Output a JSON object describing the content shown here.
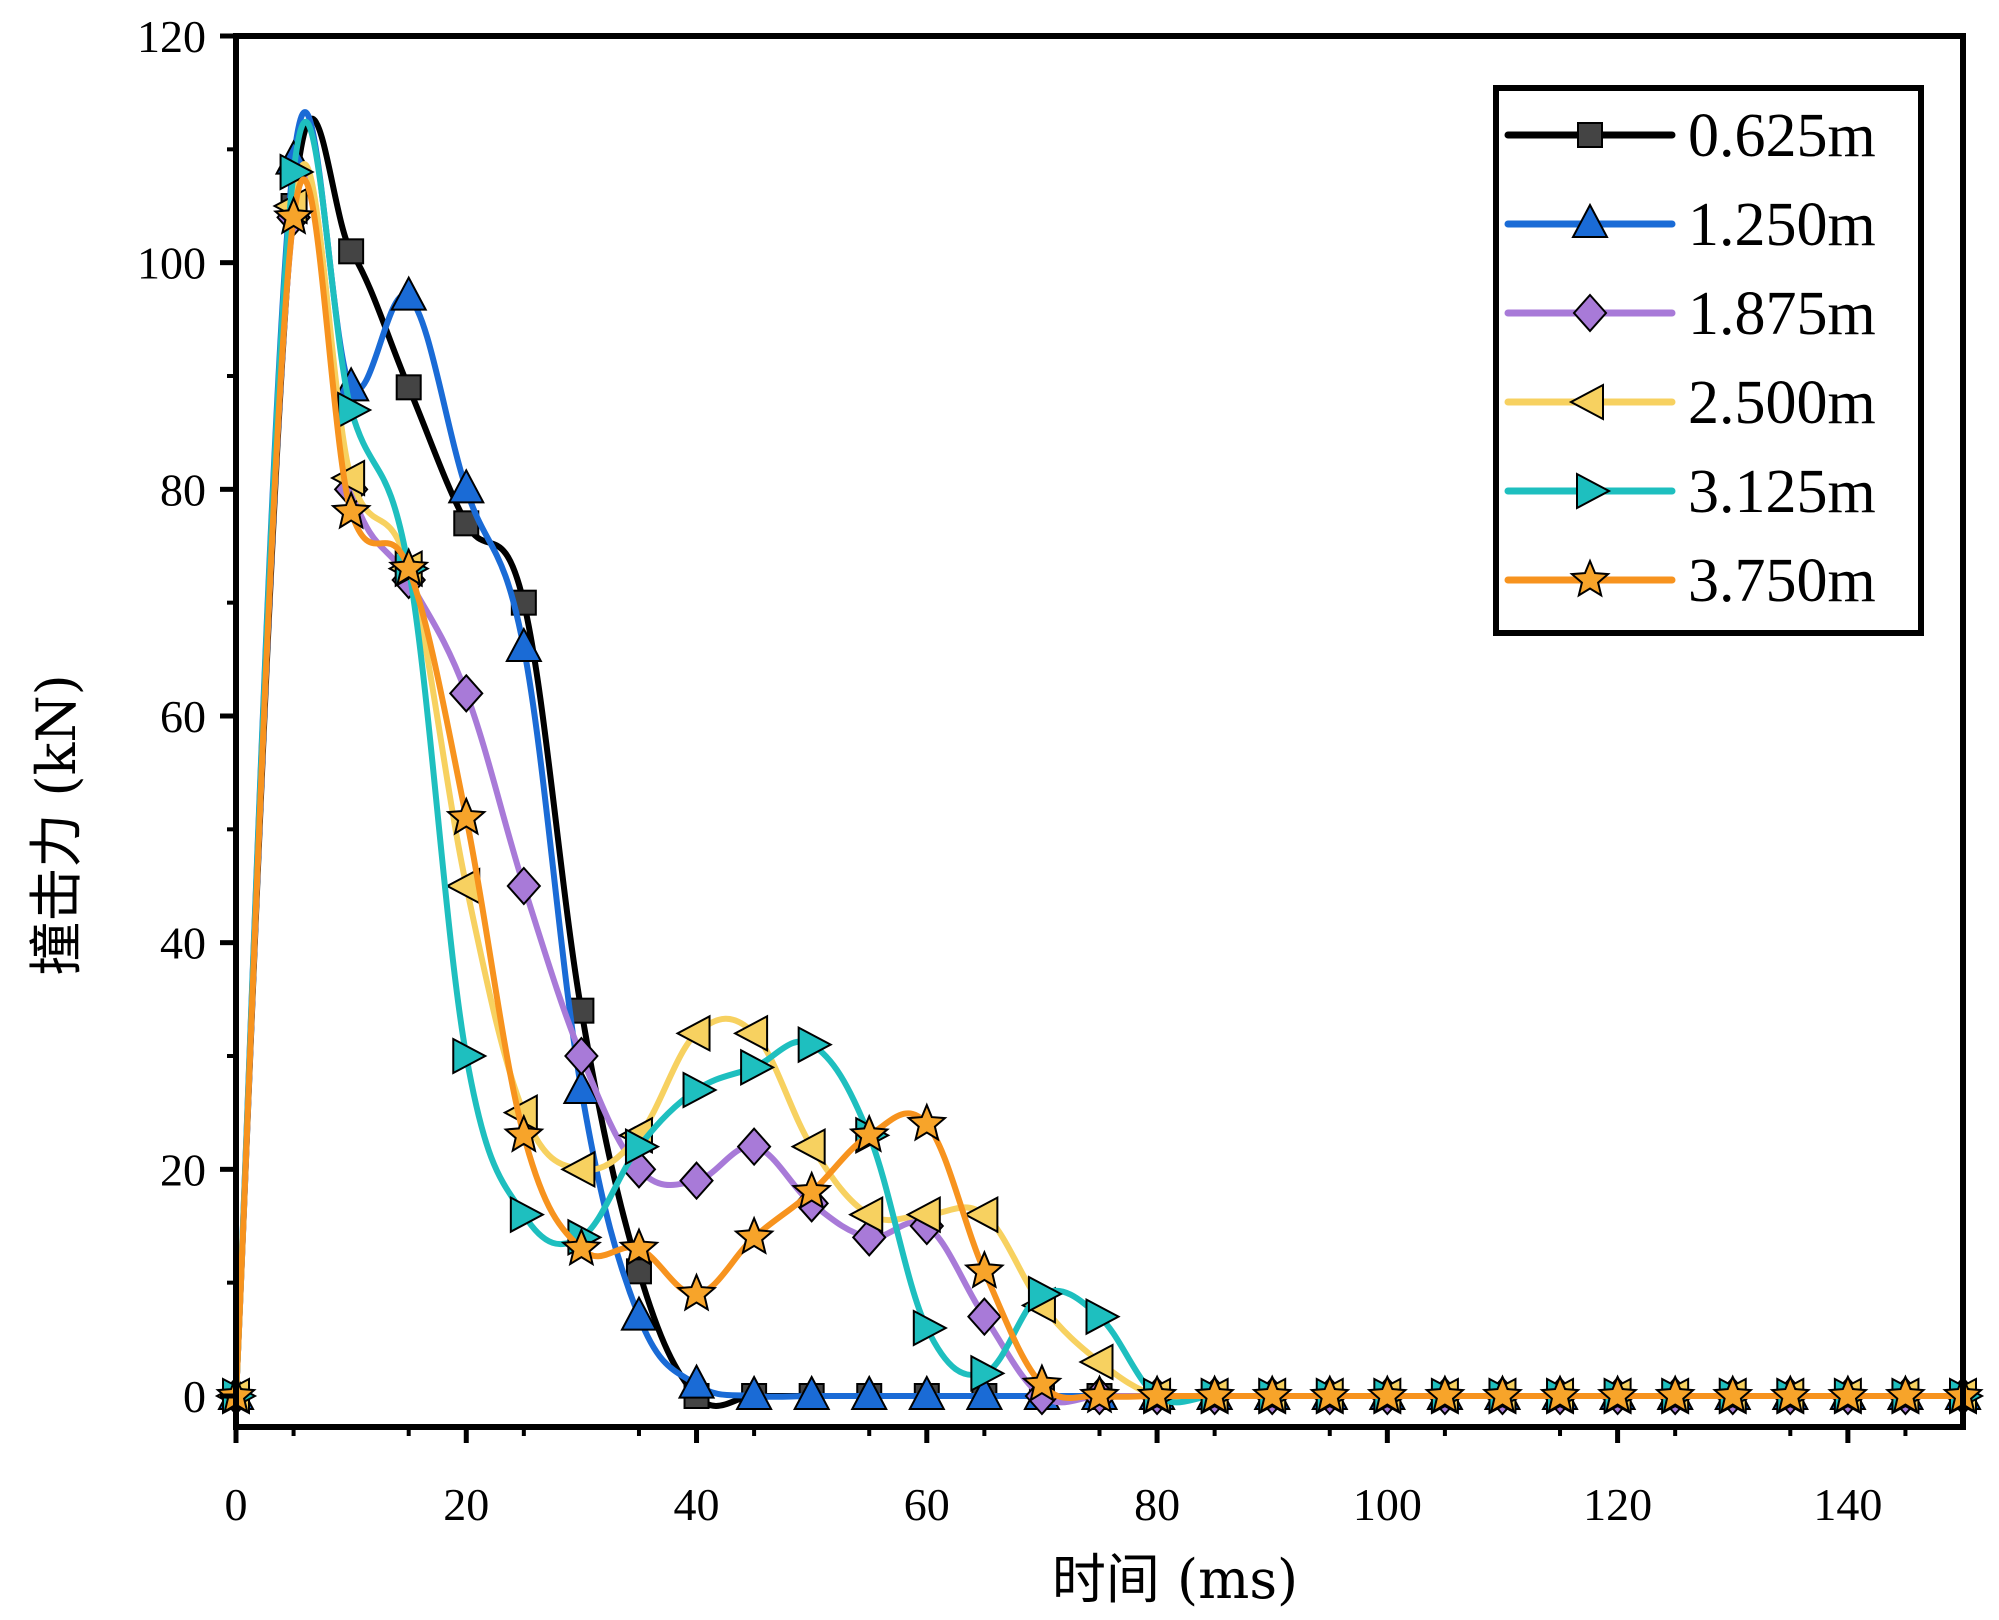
{
  "chart_data": {
    "type": "line",
    "title": "",
    "xlabel": "时间 (ms)",
    "ylabel": "撞击力 (kN)",
    "xlim": [
      0,
      150
    ],
    "ylim": [
      0,
      120
    ],
    "xticks": [
      0,
      20,
      40,
      60,
      80,
      100,
      120,
      140
    ],
    "yticks": [
      0,
      20,
      40,
      60,
      80,
      100,
      120
    ],
    "legend_position": "top-right",
    "grid": false,
    "series": [
      {
        "name": "0.625m",
        "color": "#000000",
        "marker": "square",
        "marker_color": "#444444",
        "x": [
          0,
          5,
          10,
          15,
          20,
          25,
          30,
          35,
          40,
          45,
          50,
          55,
          60,
          65,
          70,
          75,
          80,
          85,
          90,
          95,
          100,
          105,
          110,
          115,
          120,
          125,
          130,
          135,
          140,
          145,
          150
        ],
        "y": [
          0,
          105,
          101,
          89,
          77,
          70,
          34,
          11,
          0,
          0,
          0,
          0,
          0,
          0,
          0,
          0,
          0,
          0,
          0,
          0,
          0,
          0,
          0,
          0,
          0,
          0,
          0,
          0,
          0,
          0,
          0
        ]
      },
      {
        "name": "1.250m",
        "color": "#1a6bd6",
        "marker": "triangle-up",
        "marker_color": "#1a6bd6",
        "x": [
          0,
          5,
          10,
          15,
          20,
          25,
          30,
          35,
          40,
          45,
          50,
          55,
          60,
          65,
          70,
          75,
          80,
          85,
          90,
          95,
          100,
          105,
          110,
          115,
          120,
          125,
          130,
          135,
          140,
          145,
          150
        ],
        "y": [
          0,
          109,
          89,
          97,
          80,
          66,
          27,
          7,
          1,
          0,
          0,
          0,
          0,
          0,
          0,
          0,
          0,
          0,
          0,
          0,
          0,
          0,
          0,
          0,
          0,
          0,
          0,
          0,
          0,
          0,
          0
        ]
      },
      {
        "name": "1.875m",
        "color": "#a87ad8",
        "marker": "diamond",
        "marker_color": "#a87ad8",
        "x": [
          0,
          5,
          10,
          15,
          20,
          25,
          30,
          35,
          40,
          45,
          50,
          55,
          60,
          65,
          70,
          75,
          80,
          85,
          90,
          95,
          100,
          105,
          110,
          115,
          120,
          125,
          130,
          135,
          140,
          145,
          150
        ],
        "y": [
          0,
          104,
          80,
          72,
          62,
          45,
          30,
          20,
          19,
          22,
          17,
          14,
          15,
          7,
          0,
          0,
          0,
          0,
          0,
          0,
          0,
          0,
          0,
          0,
          0,
          0,
          0,
          0,
          0,
          0,
          0
        ]
      },
      {
        "name": "2.500m",
        "color": "#f7d160",
        "marker": "triangle-left",
        "marker_color": "#f7d160",
        "x": [
          0,
          5,
          10,
          15,
          20,
          25,
          30,
          35,
          40,
          45,
          50,
          55,
          60,
          65,
          70,
          75,
          80,
          85,
          90,
          95,
          100,
          105,
          110,
          115,
          120,
          125,
          130,
          135,
          140,
          145,
          150
        ],
        "y": [
          0,
          105,
          81,
          73,
          45,
          25,
          20,
          23,
          32,
          32,
          22,
          16,
          16,
          16,
          8,
          3,
          0,
          0,
          0,
          0,
          0,
          0,
          0,
          0,
          0,
          0,
          0,
          0,
          0,
          0,
          0
        ]
      },
      {
        "name": "3.125m",
        "color": "#1ebfbf",
        "marker": "triangle-right",
        "marker_color": "#1ebfbf",
        "x": [
          0,
          5,
          10,
          15,
          20,
          25,
          30,
          35,
          40,
          45,
          50,
          55,
          60,
          65,
          70,
          75,
          80,
          85,
          90,
          95,
          100,
          105,
          110,
          115,
          120,
          125,
          130,
          135,
          140,
          145,
          150
        ],
        "y": [
          0,
          108,
          87,
          73,
          30,
          16,
          14,
          22,
          27,
          29,
          31,
          23,
          6,
          2,
          9,
          7,
          0,
          0,
          0,
          0,
          0,
          0,
          0,
          0,
          0,
          0,
          0,
          0,
          0,
          0,
          0
        ]
      },
      {
        "name": "3.750m",
        "color": "#f7931e",
        "marker": "star",
        "marker_color": "#f7a42a",
        "x": [
          0,
          5,
          10,
          15,
          20,
          25,
          30,
          35,
          40,
          45,
          50,
          55,
          60,
          65,
          70,
          75,
          80,
          85,
          90,
          95,
          100,
          105,
          110,
          115,
          120,
          125,
          130,
          135,
          140,
          145,
          150
        ],
        "y": [
          0,
          104,
          78,
          73,
          51,
          23,
          13,
          13,
          9,
          14,
          18,
          23,
          24,
          11,
          1,
          0,
          0,
          0,
          0,
          0,
          0,
          0,
          0,
          0,
          0,
          0,
          0,
          0,
          0,
          0,
          0
        ]
      }
    ]
  }
}
